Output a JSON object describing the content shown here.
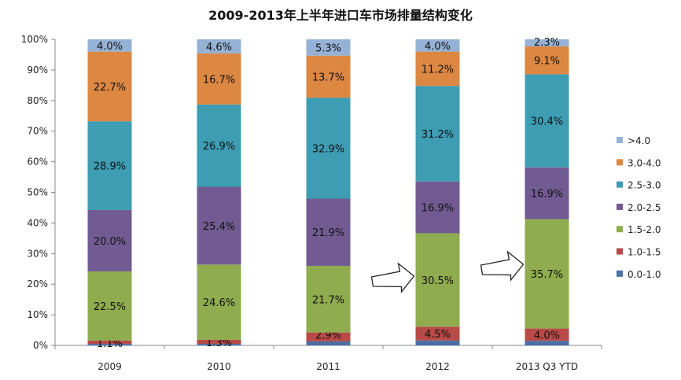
{
  "chart_data": {
    "type": "bar",
    "stacked": true,
    "title": "2009-2013年上半年进口车市场排量结构变化",
    "categories": [
      "2009",
      "2010",
      "2011",
      "2012",
      "2013 Q3 YTD"
    ],
    "ylim": [
      0,
      100
    ],
    "yticks": [
      "0%",
      "10%",
      "20%",
      "30%",
      "40%",
      "50%",
      "60%",
      "70%",
      "80%",
      "90%",
      "100%"
    ],
    "legend_position": "right",
    "series": [
      {
        "name": "0.0-1.0",
        "color": "#4a6fa5",
        "values": [
          0.5,
          0.5,
          1.3,
          1.6,
          1.5
        ],
        "labels": [
          "",
          "",
          "",
          "",
          ""
        ]
      },
      {
        "name": "1.0-1.5",
        "color": "#b84a47",
        "values": [
          1.1,
          1.3,
          2.9,
          4.5,
          4.0
        ],
        "labels": [
          "1.1%",
          "1.3%",
          "2.9%",
          "4.5%",
          "4.0%"
        ]
      },
      {
        "name": "1.5-2.0",
        "color": "#8fac4e",
        "values": [
          22.5,
          24.6,
          21.7,
          30.5,
          35.7
        ],
        "labels": [
          "22.5%",
          "24.6%",
          "21.7%",
          "30.5%",
          "35.7%"
        ]
      },
      {
        "name": "2.0-2.5",
        "color": "#725b92",
        "values": [
          20.0,
          25.4,
          21.9,
          16.9,
          16.9
        ],
        "labels": [
          "20.0%",
          "25.4%",
          "21.9%",
          "16.9%",
          "16.9%"
        ]
      },
      {
        "name": "2.5-3.0",
        "color": "#3e9cb3",
        "values": [
          28.9,
          26.9,
          32.9,
          31.2,
          30.4
        ],
        "labels": [
          "28.9%",
          "26.9%",
          "32.9%",
          "31.2%",
          "30.4%"
        ]
      },
      {
        "name": "3.0-4.0",
        "color": "#dc8742",
        "values": [
          22.7,
          16.7,
          13.7,
          11.2,
          9.1
        ],
        "labels": [
          "22.7%",
          "16.7%",
          "13.7%",
          "11.2%",
          "9.1%"
        ]
      },
      {
        "name": ">4.0",
        "color": "#95b2d6",
        "values": [
          4.0,
          4.6,
          5.3,
          4.0,
          2.3
        ],
        "labels": [
          "4.0%",
          "4.6%",
          "5.3%",
          "4.0%",
          "2.3%"
        ]
      }
    ],
    "annotations": [
      {
        "type": "arrow",
        "category": "2012",
        "pointing_to": "1.5-2.0"
      },
      {
        "type": "arrow",
        "category": "2013 Q3 YTD",
        "pointing_to": "1.5-2.0"
      }
    ]
  }
}
